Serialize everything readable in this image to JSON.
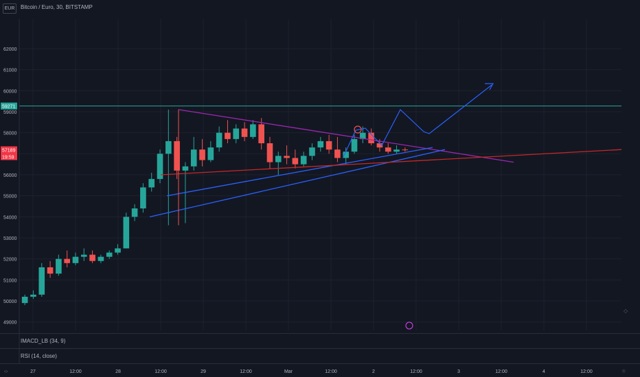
{
  "header": {
    "title": "Bitcoin / Euro, 30, BITSTAMP",
    "currency_button": "EUR"
  },
  "indicators": [
    {
      "label": "IMACD_LB (34, 9)"
    },
    {
      "label": "RSI (14, close)"
    }
  ],
  "colors": {
    "bg": "#131722",
    "grid": "#1e222d",
    "up": "#26a69a",
    "down": "#ef5350",
    "accent_teal": "#26a69a",
    "accent_red": "#f23645",
    "purple": "#9c27b0",
    "blue": "#2962ff"
  },
  "chart_data": {
    "type": "candlestick",
    "title": "Bitcoin / Euro, 30, BITSTAMP",
    "y_ticks": [
      49000,
      50000,
      51000,
      52000,
      53000,
      54000,
      55000,
      56000,
      57000,
      58000,
      59000,
      60000,
      61000,
      62000
    ],
    "ylim": [
      48600,
      63400
    ],
    "x_ticks": [
      "27",
      "12:00",
      "28",
      "12:00",
      "29",
      "12:00",
      "Mar",
      "12:00",
      "2",
      "12:00",
      "3",
      "12:00",
      "4",
      "12:00"
    ],
    "price_labels": [
      {
        "text": "59271",
        "value": 59271,
        "color": "#26a69a"
      },
      {
        "text": "57189",
        "value": 57189,
        "color": "#f23645"
      },
      {
        "text": "19:59",
        "value": null,
        "color": "#f23645"
      }
    ],
    "horizontal_lines": [
      {
        "value": 59271,
        "color": "#26a69a"
      }
    ],
    "candles_ohlc_approx": [
      [
        49900,
        50300,
        49800,
        50200
      ],
      [
        50200,
        50500,
        50100,
        50300
      ],
      [
        50300,
        51800,
        50200,
        51600
      ],
      [
        51600,
        51900,
        51100,
        51300
      ],
      [
        51300,
        52200,
        51200,
        52000
      ],
      [
        52000,
        52400,
        51600,
        51800
      ],
      [
        51800,
        52300,
        51700,
        52100
      ],
      [
        52100,
        52500,
        51900,
        52200
      ],
      [
        52200,
        52400,
        51800,
        51900
      ],
      [
        51900,
        52200,
        51800,
        52100
      ],
      [
        52100,
        52400,
        52000,
        52300
      ],
      [
        52300,
        52700,
        52200,
        52500
      ],
      [
        52500,
        54200,
        52500,
        54000
      ],
      [
        54000,
        54600,
        53800,
        54400
      ],
      [
        54400,
        55600,
        54200,
        55400
      ],
      [
        55400,
        56100,
        55200,
        55800
      ],
      [
        55800,
        57200,
        55600,
        57000
      ],
      [
        57000,
        59100,
        53600,
        57600
      ],
      [
        57600,
        57800,
        55800,
        56200
      ],
      [
        56200,
        56600,
        53700,
        56400
      ],
      [
        56400,
        57800,
        56200,
        57200
      ],
      [
        57200,
        57700,
        56400,
        56700
      ],
      [
        56700,
        57600,
        56600,
        57300
      ],
      [
        57300,
        58300,
        57100,
        58000
      ],
      [
        58000,
        58600,
        57500,
        57700
      ],
      [
        57700,
        58400,
        57500,
        58200
      ],
      [
        58200,
        58500,
        57600,
        57800
      ],
      [
        57800,
        58600,
        57700,
        58400
      ],
      [
        58400,
        58700,
        57200,
        57500
      ],
      [
        57500,
        57800,
        56300,
        56600
      ],
      [
        56600,
        57100,
        56000,
        56900
      ],
      [
        56900,
        57400,
        56500,
        56800
      ],
      [
        56800,
        57200,
        56300,
        56500
      ],
      [
        56500,
        57100,
        56400,
        56900
      ],
      [
        56900,
        57500,
        56700,
        57300
      ],
      [
        57300,
        57800,
        57100,
        57600
      ],
      [
        57600,
        57900,
        57000,
        57200
      ],
      [
        57200,
        57800,
        56600,
        56800
      ],
      [
        56800,
        57300,
        56500,
        57100
      ],
      [
        57100,
        57900,
        57000,
        57700
      ],
      [
        57700,
        58300,
        57500,
        58000
      ],
      [
        58000,
        58200,
        57400,
        57500
      ],
      [
        57500,
        57700,
        57100,
        57300
      ],
      [
        57300,
        57500,
        57000,
        57100
      ],
      [
        57100,
        57400,
        57000,
        57200
      ],
      [
        57200,
        57300,
        57100,
        57189
      ]
    ],
    "drawings": [
      {
        "type": "trendline",
        "color": "#9c27b0",
        "from": [
          "28 18:00",
          59100
        ],
        "to": [
          "2 16:00",
          56600
        ]
      },
      {
        "type": "trendline",
        "color": "#2962ff",
        "from": [
          "28 12:00",
          54000
        ],
        "to": [
          "2 06:00",
          57200
        ]
      },
      {
        "type": "trendline",
        "color": "#2962ff",
        "from": [
          "28 14:00",
          55000
        ],
        "to": [
          "2 03:00",
          57300
        ]
      },
      {
        "type": "trendline",
        "color": "#c62828",
        "from": [
          "28 12:00",
          56000
        ],
        "to": [
          "4 23:00",
          57200
        ]
      }
    ]
  }
}
